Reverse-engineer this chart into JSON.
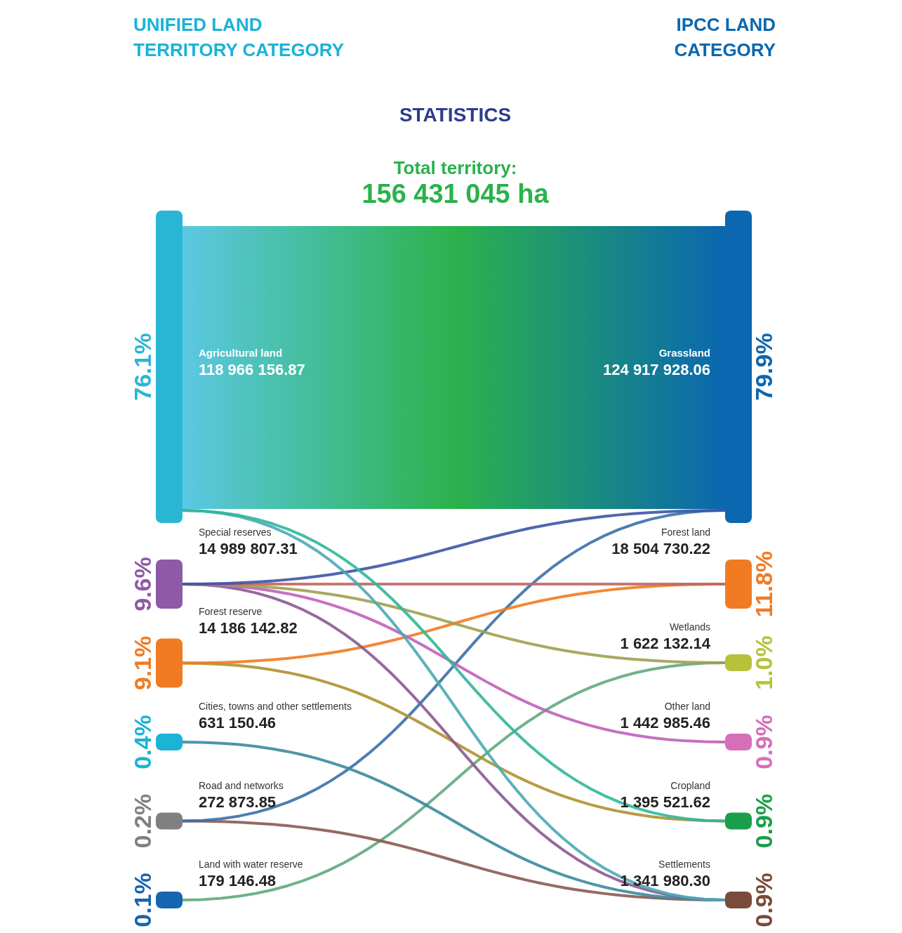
{
  "chart_data": {
    "type": "other",
    "title": "STATISTICS",
    "subtitle": "Total territory:",
    "categories": [
      "Agricultural land",
      "Special reserves",
      "Forest reserve",
      "Cities, towns and other settlements",
      "Road and networks",
      "Land with water reserve",
      "Grassland",
      "Forest land",
      "Wetlands",
      "Other land",
      "Cropland",
      "Settlements"
    ],
    "annotations": [
      "156 431 045 ha",
      "76.1%",
      "9.6%",
      "9.1%",
      "0.4%",
      "0.2%",
      "0.1%",
      "79.9%",
      "11.8%",
      "1.0%",
      "0.9%",
      "0.9%",
      "0.9%"
    ],
    "series": [
      {
        "name": "UNIFIED LAND\nTERRITORY CATEGORY",
        "color": "#1bb3d6",
        "values": [
          118966156.87,
          14989807.31,
          14186142.82,
          631150.46,
          272873.85,
          179146.48,
          null,
          null,
          null,
          null,
          null,
          null
        ],
        "colors": [
          "#29b6d5",
          "#8e5aa8",
          "#f07b22",
          "#1bb3d6",
          "#808080",
          "#1565b0",
          null,
          null,
          null,
          null,
          null,
          null
        ],
        "value_labels": [
          "118 966 156.87",
          "14 989 807.31",
          "14 186 142.82",
          "631 150.46",
          "272 873.85",
          "179 146.48",
          null,
          null,
          null,
          null,
          null,
          null
        ]
      },
      {
        "name": "IPCC  LAND\nCATEGORY",
        "color": "#0a67b0",
        "values": [
          null,
          null,
          null,
          null,
          null,
          null,
          124917928.06,
          18504730.22,
          1622132.14,
          1442985.46,
          1395521.62,
          1341980.3
        ],
        "colors": [
          null,
          null,
          null,
          null,
          null,
          null,
          "#0a67b0",
          "#f07b22",
          "#b5c23a",
          "#d66eb8",
          "#1b9e4b",
          "#7a4a3a"
        ],
        "value_labels": [
          null,
          null,
          null,
          null,
          null,
          null,
          "124 917 928.06",
          "18 504 730.22",
          "1 622 132.14",
          "1 442 985.46",
          "1 395 521.62",
          "1 341 980.30"
        ]
      }
    ]
  }
}
